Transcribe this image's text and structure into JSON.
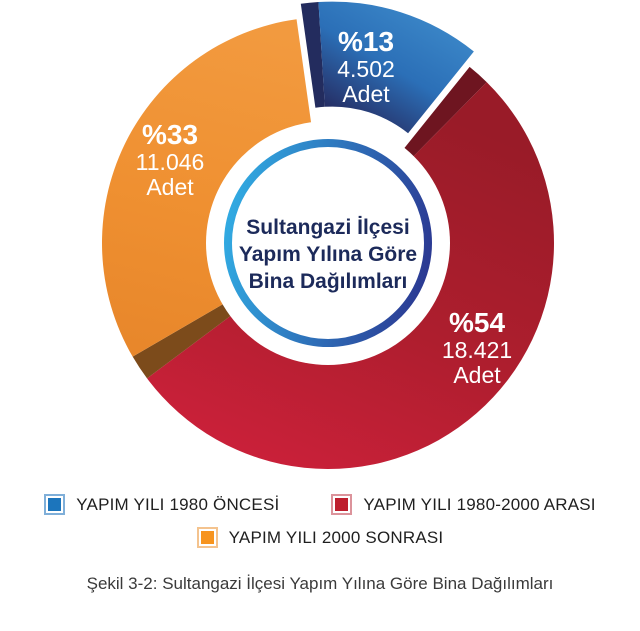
{
  "chart_data": {
    "type": "pie",
    "subtype": "donut-exploded-3d",
    "title": "Sultangazi İlçesi Yapım Yılına Göre Bina Dağılımları",
    "center_lines": [
      "Sultangazi İlçesi",
      "Yapım Yılına Göre",
      "Bina Dağılımları"
    ],
    "start_angle_deg": -8,
    "legend_position": "bottom",
    "ring_gradient": [
      "#31A9E1",
      "#2B3A93"
    ],
    "slices": [
      {
        "id": "1980-oncesi",
        "legend": "YAPIM YILI 1980 ÖNCESİ",
        "percent": 13,
        "percent_label": "%13",
        "count": 4502,
        "count_label": "4.502",
        "unit_label": "Adet",
        "explode": true,
        "color": "#2B6FB7",
        "gradient": [
          "#3E8BCB",
          "#2B6FB7",
          "#263067"
        ],
        "edge_color": "#232C5E",
        "legend_fill": "#1C75BC",
        "legend_border": "#7FAFD9"
      },
      {
        "id": "1980-2000-arasi",
        "legend": "YAPIM YILI 1980-2000 ARASI",
        "percent": 54,
        "percent_label": "%54",
        "count": 18421,
        "count_label": "18.421",
        "unit_label": "Adet",
        "explode": false,
        "color": "#AE1E2E",
        "gradient": [
          "#991B28",
          "#AE1E2E",
          "#C92039"
        ],
        "edge_color": "#6E1520",
        "legend_fill": "#BE1E2D",
        "legend_border": "#DC939B"
      },
      {
        "id": "2000-sonrasi",
        "legend": "YAPIM YILI 2000 SONRASI",
        "percent": 33,
        "percent_label": "%33",
        "count": 11046,
        "count_label": "11.046",
        "unit_label": "Adet",
        "explode": false,
        "color": "#EF9031",
        "gradient": [
          "#F29A3F",
          "#EF9031",
          "#E8872B"
        ],
        "edge_color": "#7C4B1B",
        "legend_fill": "#F7941E",
        "legend_border": "#F4C38E"
      }
    ]
  },
  "figure": {
    "caption": "Şekil 3-2: Sultangazi İlçesi Yapım Yılına Göre Bina Dağılımları"
  }
}
